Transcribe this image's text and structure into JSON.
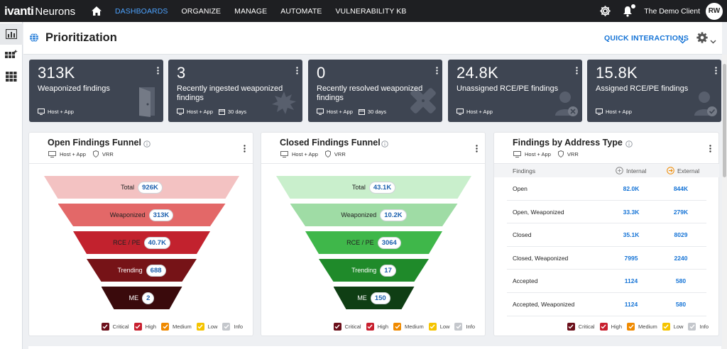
{
  "nav": {
    "logo_bold": "ivanti",
    "logo_rest": "Neurons",
    "items": [
      {
        "label": "DASHBOARDS"
      },
      {
        "label": "ORGANIZE"
      },
      {
        "label": "MANAGE"
      },
      {
        "label": "AUTOMATE"
      },
      {
        "label": "VULNERABILITY KB"
      }
    ],
    "client": "The Demo Client",
    "avatar": "RW"
  },
  "page": {
    "title": "Prioritization",
    "quick_interactions": "QUICK INTERACTIONS"
  },
  "stats": [
    {
      "value": "313K",
      "label": "Weaponized findings",
      "scope": "Host + App",
      "period": ""
    },
    {
      "value": "3",
      "label": "Recently ingested weaponized findings",
      "scope": "Host + App",
      "period": "30 days"
    },
    {
      "value": "0",
      "label": "Recently resolved weaponized findings",
      "scope": "Host + App",
      "period": "30 days"
    },
    {
      "value": "24.8K",
      "label": "Unassigned RCE/PE findings",
      "scope": "Host + App",
      "period": ""
    },
    {
      "value": "15.8K",
      "label": "Assigned RCE/PE findings",
      "scope": "Host + App",
      "period": ""
    }
  ],
  "open_funnel": {
    "title": "Open Findings Funnel",
    "scope": "Host + App",
    "metric": "VRR",
    "stages": [
      {
        "label": "Total",
        "value": "926K",
        "color": "#f3c2c2"
      },
      {
        "label": "Weaponized",
        "value": "313K",
        "color": "#e36868"
      },
      {
        "label": "RCE / PE",
        "value": "40.7K",
        "color": "#c2222e"
      },
      {
        "label": "Trending",
        "value": "688",
        "color": "#761317"
      },
      {
        "label": "ME",
        "value": "2",
        "color": "#3a0a0c"
      }
    ]
  },
  "closed_funnel": {
    "title": "Closed Findings Funnel",
    "scope": "Host + App",
    "metric": "VRR",
    "stages": [
      {
        "label": "Total",
        "value": "43.1K",
        "color": "#c9efcc"
      },
      {
        "label": "Weaponized",
        "value": "10.2K",
        "color": "#9fdca5"
      },
      {
        "label": "RCE / PE",
        "value": "3064",
        "color": "#3fb74a"
      },
      {
        "label": "Trending",
        "value": "17",
        "color": "#1f8a2a"
      },
      {
        "label": "ME",
        "value": "150",
        "color": "#0f3e14"
      }
    ]
  },
  "address": {
    "title": "Findings by Address Type",
    "scope": "Host + App",
    "metric": "VRR",
    "headers": [
      "Findings",
      "Internal",
      "External"
    ],
    "rows": [
      {
        "name": "Open",
        "internal": "82.0K",
        "external": "844K"
      },
      {
        "name": "Open, Weaponized",
        "internal": "33.3K",
        "external": "279K"
      },
      {
        "name": "Closed",
        "internal": "35.1K",
        "external": "8029"
      },
      {
        "name": "Closed, Weaponized",
        "internal": "7995",
        "external": "2240"
      },
      {
        "name": "Accepted",
        "internal": "1124",
        "external": "580"
      },
      {
        "name": "Accepted, Weaponized",
        "internal": "1124",
        "external": "580"
      }
    ]
  },
  "legend": [
    {
      "label": "Critical",
      "color": "#6b0f1a"
    },
    {
      "label": "High",
      "color": "#c8202f"
    },
    {
      "label": "Medium",
      "color": "#f08a00"
    },
    {
      "label": "Low",
      "color": "#f5c400"
    },
    {
      "label": "Info",
      "color": "#c4c7cc"
    }
  ]
}
